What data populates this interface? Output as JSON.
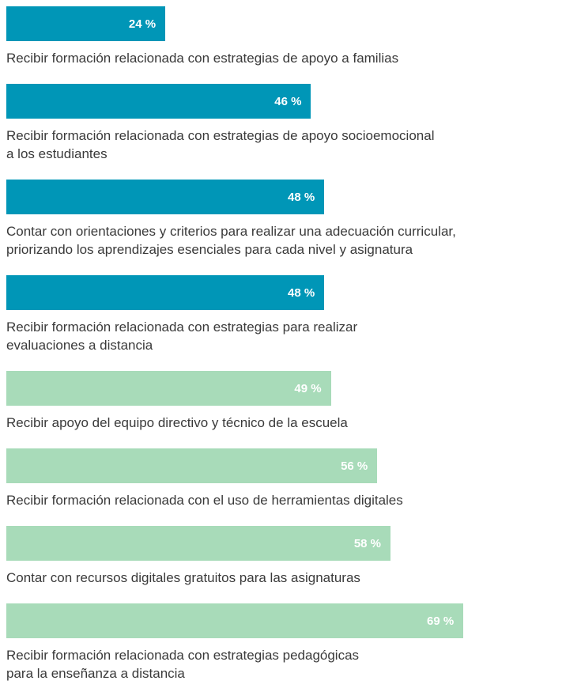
{
  "chart_data": {
    "type": "bar",
    "categories": [
      "Recibir formación relacionada con estrategias de apoyo a familias",
      "Recibir formación relacionada con estrategias de apoyo socioemocional\na los estudiantes",
      "Contar con orientaciones y criterios para realizar una adecuación curricular,\npriorizando los aprendizajes esenciales para cada nivel y asignatura",
      "Recibir formación relacionada con estrategias para realizar\nevaluaciones a distancia",
      "Recibir apoyo del equipo directivo y técnico de la escuela",
      "Recibir formación relacionada con el uso de herramientas digitales",
      "Contar con recursos digitales gratuitos para las asignaturas",
      "Recibir formación relacionada con estrategias pedagógicas\npara la enseñanza a distancia"
    ],
    "values": [
      24,
      46,
      48,
      48,
      49,
      56,
      58,
      69
    ],
    "value_labels": [
      "24 %",
      "46 %",
      "48 %",
      "48 %",
      "49 %",
      "56 %",
      "58 %",
      "69 %"
    ],
    "colors": [
      "#0096b7",
      "#0096b7",
      "#0096b7",
      "#0096b7",
      "#a8dbb9",
      "#a8dbb9",
      "#a8dbb9",
      "#a8dbb9"
    ]
  }
}
